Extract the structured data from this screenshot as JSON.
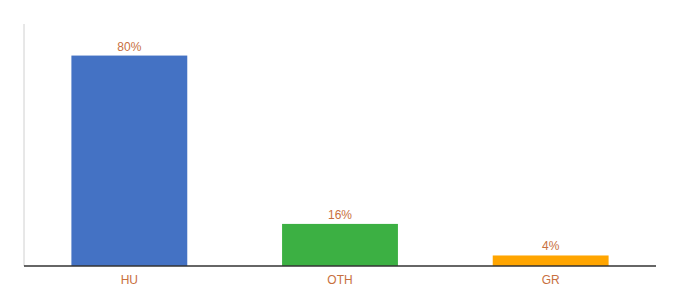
{
  "chart_data": {
    "type": "bar",
    "categories": [
      "HU",
      "OTH",
      "GR"
    ],
    "values": [
      80,
      16,
      4
    ],
    "value_labels": [
      "80%",
      "16%",
      "4%"
    ],
    "colors": [
      "#4472c4",
      "#3cb043",
      "#ffa500"
    ],
    "ylim": [
      0,
      92
    ],
    "data_labels": true,
    "tick_labels": "x"
  }
}
